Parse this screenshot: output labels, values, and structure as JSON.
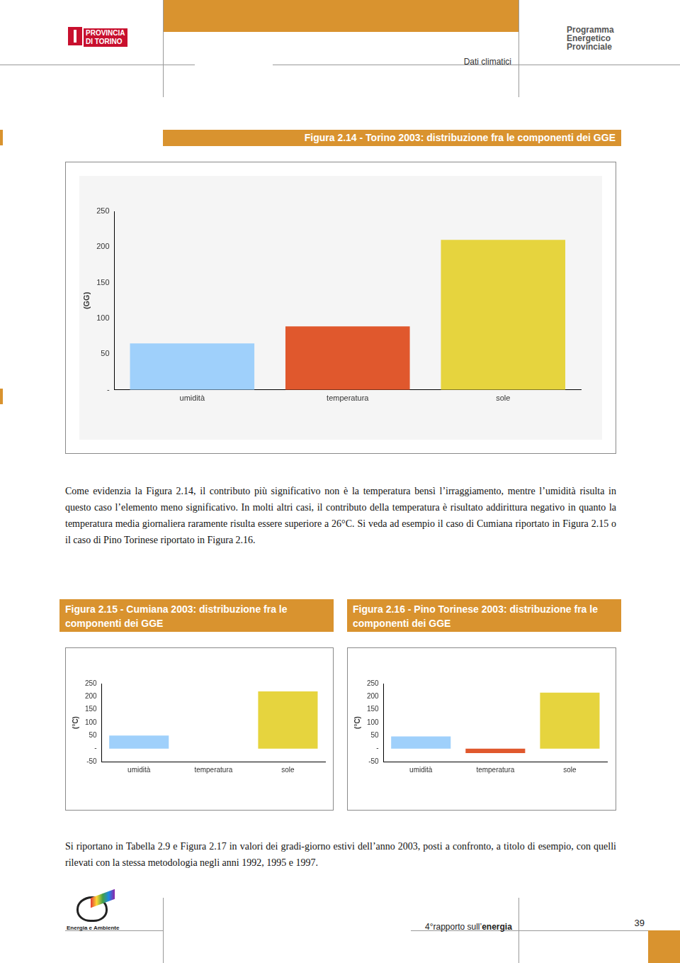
{
  "header": {
    "left_logo": [
      "PROVINCIA",
      "DI TORINO"
    ],
    "right_logo": [
      "Programma",
      "Energetico",
      "Provinciale"
    ],
    "section": "Dati climatici"
  },
  "paragraphs": [
    "Come evidenzia la Figura 2.14, il contributo più significativo non è la temperatura bensì l’irraggiamento, mentre l’umidità risulta in questo caso l’elemento meno significativo. In molti altri casi, il contributo della temperatura è risultato addirittura negativo in quanto la temperatura media giornaliera raramente risulta essere superiore a 26°C. Si veda ad esempio il caso di Cumiana riportato in Figura 2.15 o il caso di Pino Torinese riportato in Figura 2.16.",
    "Si riportano in Tabella 2.9 e Figura 2.17 in valori dei gradi-giorno estivi dell’anno 2003, posti a confronto, a titolo di esempio, con quelli rilevati con la stessa metodologia negli anni 1992, 1995 e 1997."
  ],
  "footer": {
    "left_logo": "Energia e Ambiente",
    "report": [
      "4°rapporto sull’",
      "energia"
    ],
    "page": "39"
  },
  "chart_data": [
    {
      "type": "bar",
      "title": "Figura 2.14 - Torino 2003: distribuzione fra le componenti dei GGE",
      "y_label": "(GG)",
      "categories": [
        "umidità",
        "temperatura",
        "sole"
      ],
      "values": [
        65,
        89,
        210
      ],
      "colors": [
        "#9fd0fb",
        "#e0582d",
        "#e6d43e"
      ],
      "ylim": [
        0,
        250
      ],
      "yticks": [
        {
          "value": 0,
          "label": "-"
        },
        50,
        100,
        150,
        200,
        250
      ],
      "grid": false
    },
    {
      "type": "bar",
      "title": "Figura 2.15 - Cumiana 2003: distribuzione fra le componenti dei GGE",
      "y_label": "(°C)",
      "categories": [
        "umidità",
        "temperatura",
        "sole"
      ],
      "values": [
        50,
        0,
        220
      ],
      "colors": [
        "#9fd0fb",
        "#e0582d",
        "#e6d43e"
      ],
      "ylim": [
        -50,
        250
      ],
      "yticks": [
        -50,
        {
          "value": 0,
          "label": "-"
        },
        50,
        100,
        150,
        200,
        250
      ],
      "grid": false
    },
    {
      "type": "bar",
      "title": "Figura 2.16 - Pino Torinese 2003: distribuzione fra le componenti dei GGE",
      "y_label": "(°C)",
      "categories": [
        "umidità",
        "temperatura",
        "sole"
      ],
      "values": [
        47,
        -17,
        215
      ],
      "colors": [
        "#9fd0fb",
        "#e0582d",
        "#e6d43e"
      ],
      "ylim": [
        -50,
        250
      ],
      "yticks": [
        -50,
        {
          "value": 0,
          "label": "-"
        },
        50,
        100,
        150,
        200,
        250
      ],
      "grid": false
    }
  ]
}
